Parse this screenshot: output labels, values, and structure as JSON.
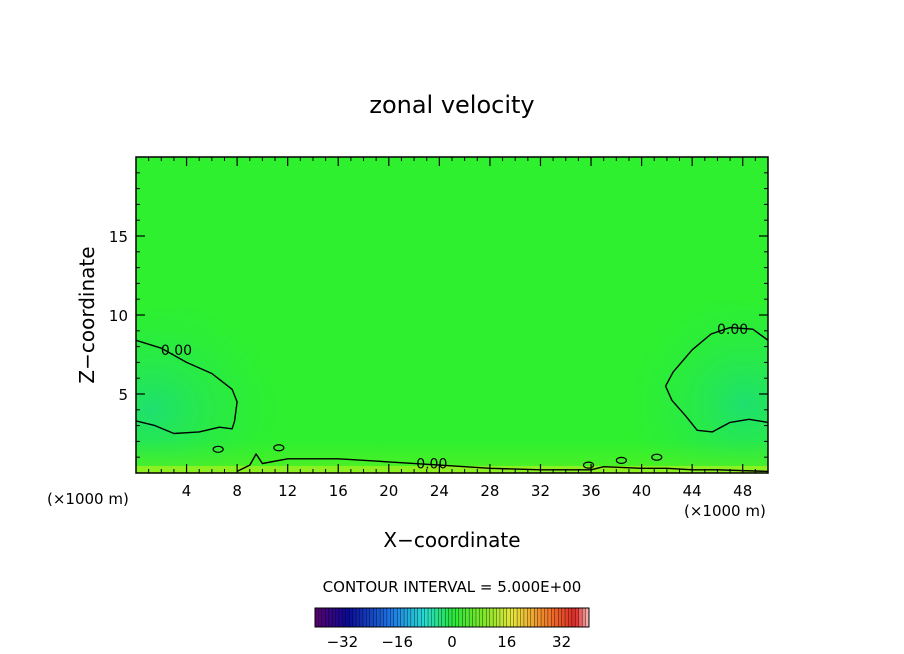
{
  "chart_data": {
    "type": "contour",
    "title": "zonal velocity",
    "xlabel": "X−coordinate",
    "ylabel": "Z−coordinate",
    "x_unit_left": "(×1000 m)",
    "x_unit_right": "(×1000 m)",
    "xlim": [
      0,
      50
    ],
    "ylim": [
      0,
      20
    ],
    "x_ticks": [
      4,
      8,
      12,
      16,
      20,
      24,
      28,
      32,
      36,
      40,
      44,
      48
    ],
    "y_ticks": [
      5,
      10,
      15
    ],
    "x_tick_labels": [
      "4",
      "8",
      "12",
      "16",
      "20",
      "24",
      "28",
      "32",
      "36",
      "40",
      "44",
      "48"
    ],
    "y_tick_labels": [
      "5",
      "10",
      "15"
    ],
    "contour_interval_text": "CONTOUR INTERVAL = 5.000E+00",
    "contour_labels": [
      {
        "text": "0.00",
        "x": 3.2,
        "y": 7.8
      },
      {
        "text": "0.00",
        "x": 47.2,
        "y": 9.1
      },
      {
        "text": "0.00",
        "x": 23.4,
        "y": 0.6
      }
    ],
    "contour_zero_left": [
      [
        0,
        8.4
      ],
      [
        2,
        7.9
      ],
      [
        4,
        7.0
      ],
      [
        6,
        6.3
      ],
      [
        7.6,
        5.3
      ],
      [
        8,
        4.5
      ],
      [
        7.8,
        3.3
      ],
      [
        7.6,
        2.8
      ],
      [
        6.6,
        2.9
      ],
      [
        5,
        2.6
      ],
      [
        3,
        2.5
      ],
      [
        1.5,
        3.0
      ],
      [
        0,
        3.3
      ]
    ],
    "contour_zero_right": [
      [
        50,
        8.4
      ],
      [
        48.8,
        9.1
      ],
      [
        47,
        9.2
      ],
      [
        45.5,
        8.8
      ],
      [
        44,
        7.8
      ],
      [
        42.5,
        6.4
      ],
      [
        41.9,
        5.5
      ],
      [
        42.4,
        4.6
      ],
      [
        43.5,
        3.6
      ],
      [
        44.4,
        2.7
      ],
      [
        45.6,
        2.6
      ],
      [
        47,
        3.2
      ],
      [
        48.5,
        3.4
      ],
      [
        50,
        3.2
      ]
    ],
    "contour_zero_bottom": [
      [
        8,
        0.1
      ],
      [
        9,
        0.5
      ],
      [
        9.5,
        1.2
      ],
      [
        10,
        0.6
      ],
      [
        12,
        0.9
      ],
      [
        16,
        0.9
      ],
      [
        20,
        0.7
      ],
      [
        24,
        0.5
      ],
      [
        28,
        0.3
      ],
      [
        32,
        0.2
      ],
      [
        36,
        0.2
      ],
      [
        37,
        0.4
      ],
      [
        40,
        0.3
      ],
      [
        42,
        0.3
      ],
      [
        44,
        0.2
      ],
      [
        46,
        0.2
      ],
      [
        50,
        0.1
      ]
    ],
    "colorbar": {
      "min": -40,
      "max": 40,
      "tick_labels": [
        "−32",
        "−16",
        "0",
        "16",
        "32"
      ],
      "tick_values": [
        -32,
        -16,
        0,
        16,
        32
      ]
    },
    "colors": {
      "field_main": "#2ef02e",
      "field_low_zone": "#27e85a",
      "line": "#000000"
    }
  }
}
